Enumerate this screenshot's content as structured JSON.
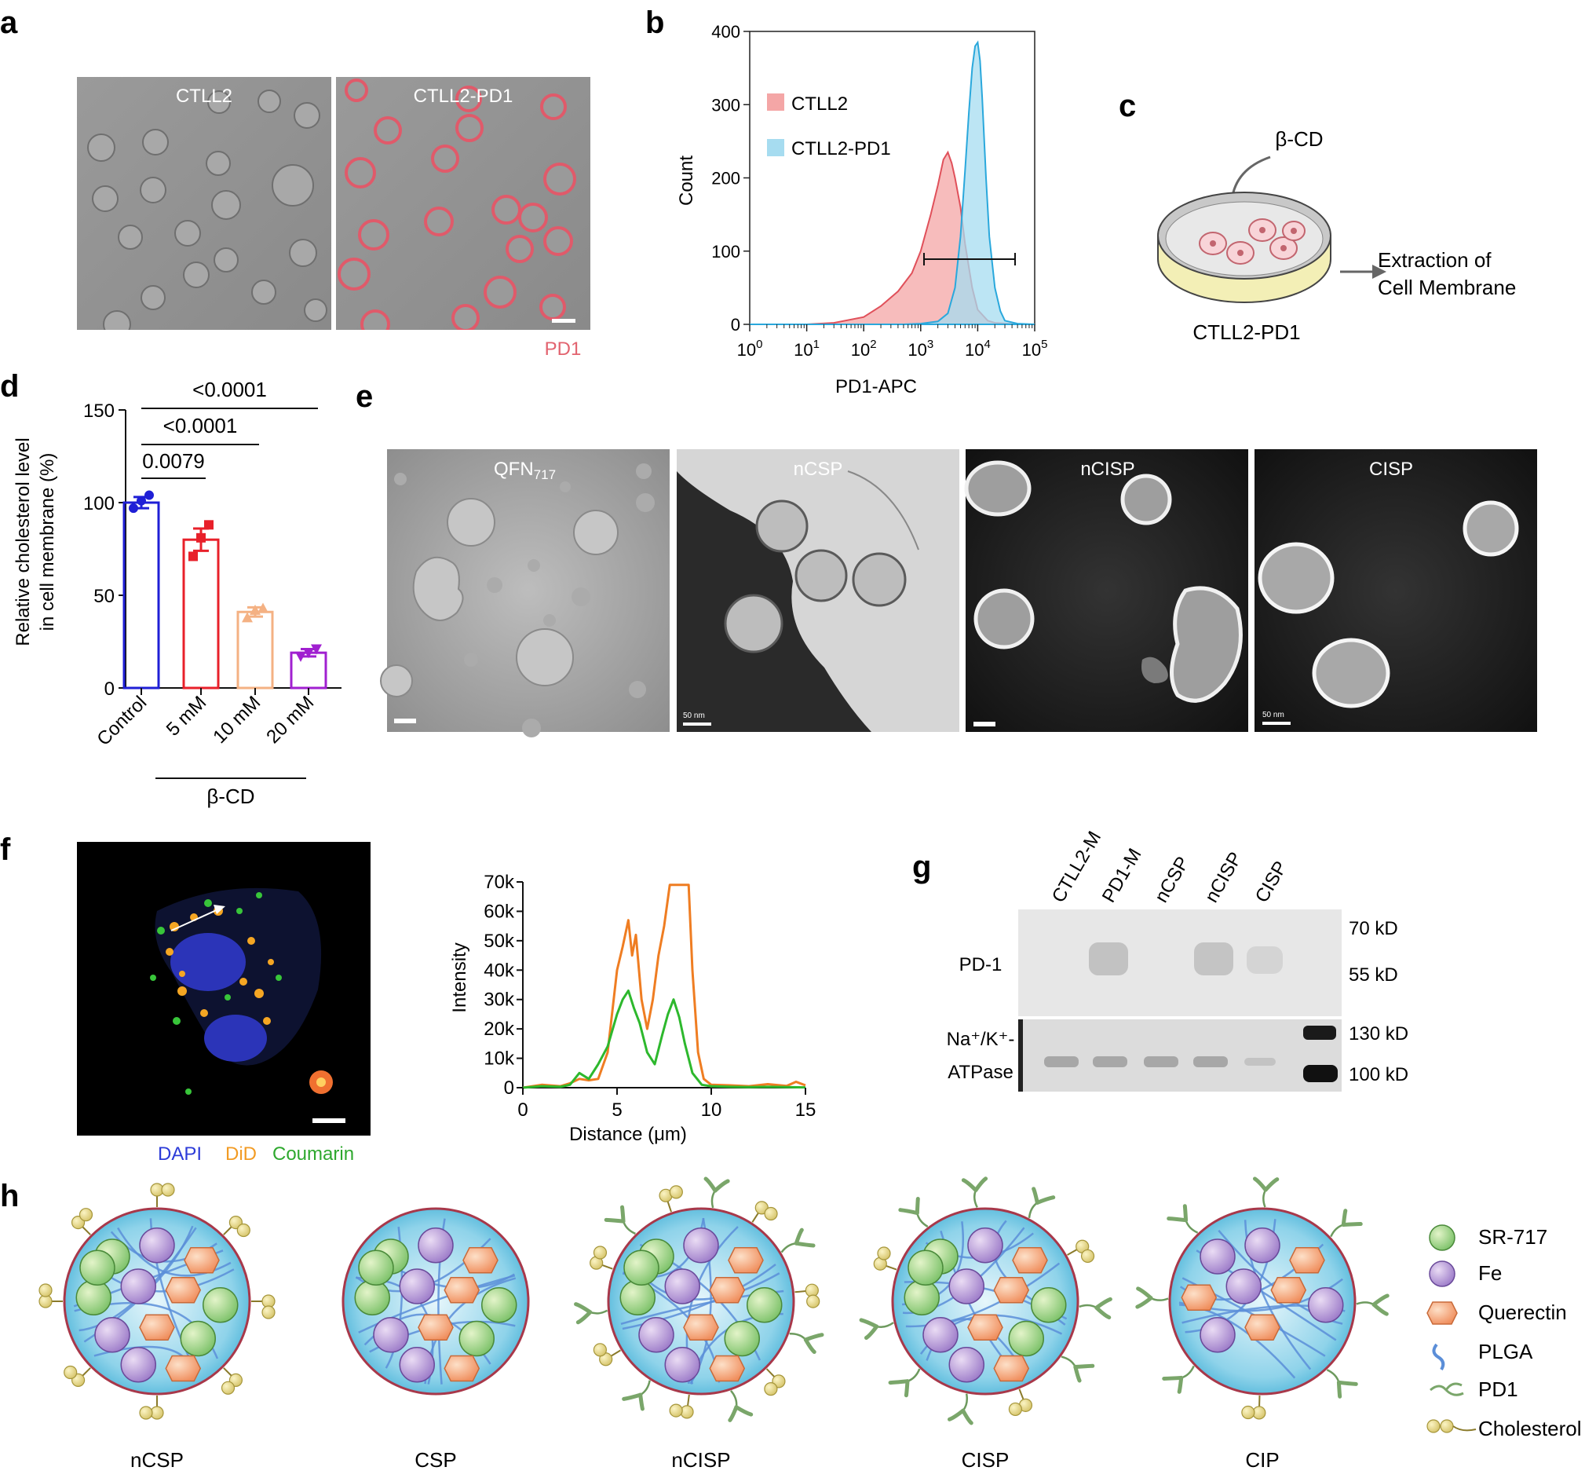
{
  "panels": {
    "a": {
      "letter": "a",
      "image_labels": [
        "CTLL2",
        "CTLL2-PD1"
      ],
      "channel_label": "PD1"
    },
    "b": {
      "letter": "b",
      "legend": [
        "CTLL2",
        "CTLL2-PD1"
      ],
      "xlabel": "PD1-APC",
      "ylabel": "Count",
      "yticks": [
        "0",
        "100",
        "200",
        "300",
        "400"
      ],
      "xticks": [
        {
          "base": "10",
          "exp": "0"
        },
        {
          "base": "10",
          "exp": "1"
        },
        {
          "base": "10",
          "exp": "2"
        },
        {
          "base": "10",
          "exp": "3"
        },
        {
          "base": "10",
          "exp": "4"
        },
        {
          "base": "10",
          "exp": "5"
        }
      ]
    },
    "c": {
      "letter": "c",
      "reagent": "β-CD",
      "output_line1": "Extraction of",
      "output_line2": "Cell Membrane",
      "dish_label": "CTLL2-PD1"
    },
    "d": {
      "letter": "d",
      "ylabel_line1": "Relative cholesterol level",
      "ylabel_line2": "in cell membrane (%)",
      "yticks": [
        "0",
        "50",
        "100",
        "150"
      ],
      "group_label": "β-CD",
      "pvalues": [
        "<0.0001",
        "<0.0001",
        "0.0079"
      ]
    },
    "e": {
      "letter": "e",
      "image_labels": [
        "QFN",
        "nCSP",
        "nCISP",
        "CISP"
      ],
      "qfn_subscript": "717",
      "scale_text": [
        "50 nm",
        "50 nm"
      ]
    },
    "f": {
      "letter": "f",
      "stain_labels": [
        "DAPI",
        "DiD",
        "Coumarin"
      ],
      "xlabel": "Distance (μm)",
      "ylabel": "Intensity",
      "yticks": [
        "0",
        "10k",
        "20k",
        "30k",
        "40k",
        "50k",
        "60k",
        "70k"
      ],
      "xticks": [
        "0",
        "5",
        "10",
        "15"
      ]
    },
    "g": {
      "letter": "g",
      "lanes": [
        "CTLL2-M",
        "PD1-M",
        "nCSP",
        "nCISP",
        "CISP"
      ],
      "row1_label": "PD-1",
      "row2_label_line1": "Na⁺/K⁺-",
      "row2_label_line2": "ATPase",
      "markers": [
        "70 kD",
        "55 kD",
        "130 kD",
        "100 kD"
      ]
    },
    "h": {
      "letter": "h",
      "particles": [
        "nCSP",
        "CSP",
        "nCISP",
        "CISP",
        "CIP"
      ],
      "legend": [
        "SR-717",
        "Fe",
        "Querectin",
        "PLGA",
        "PD1",
        "Cholesterol"
      ]
    }
  },
  "chart_data": [
    {
      "type": "bar",
      "panel": "d",
      "categories": [
        "Control",
        "5 mM",
        "10 mM",
        "20 mM"
      ],
      "values": [
        100,
        80,
        41,
        19
      ],
      "errors": [
        3,
        6,
        2.5,
        2
      ],
      "points": [
        [
          97,
          101,
          104
        ],
        [
          71,
          81,
          88
        ],
        [
          38,
          42,
          43
        ],
        [
          17,
          19,
          21
        ]
      ],
      "colors": [
        "#1f1fd6",
        "#e8202a",
        "#f4b183",
        "#a020d0"
      ],
      "ylabel": "Relative cholesterol level in cell membrane (%)",
      "ylim": [
        0,
        150
      ],
      "comparisons": [
        {
          "pair": [
            "Control",
            "20 mM"
          ],
          "p": "<0.0001"
        },
        {
          "pair": [
            "Control",
            "10 mM"
          ],
          "p": "<0.0001"
        },
        {
          "pair": [
            "Control",
            "5 mM"
          ],
          "p": "0.0079"
        }
      ]
    },
    {
      "type": "area",
      "panel": "b",
      "xlabel": "PD1-APC",
      "ylabel": "Count",
      "xscale": "log",
      "xlim": [
        1,
        100000
      ],
      "ylim": [
        0,
        400
      ],
      "series": [
        {
          "name": "CTLL2",
          "color": "#f4a6a6",
          "x": [
            1,
            10,
            30,
            100,
            200,
            400,
            700,
            1000,
            1500,
            2000,
            2500,
            3000,
            3500,
            4000,
            5000,
            6000,
            8000,
            10000,
            15000,
            20000,
            50000,
            100000
          ],
          "y": [
            0,
            0,
            2,
            10,
            25,
            45,
            70,
            100,
            150,
            190,
            225,
            235,
            220,
            200,
            160,
            110,
            50,
            20,
            5,
            2,
            0,
            0
          ]
        },
        {
          "name": "CTLL2-PD1",
          "color": "#a6dcf0",
          "x": [
            1,
            100,
            500,
            1000,
            2000,
            3000,
            4000,
            5000,
            6000,
            7000,
            8000,
            9000,
            10000,
            11000,
            12000,
            14000,
            16000,
            20000,
            25000,
            30000,
            50000,
            100000
          ],
          "y": [
            0,
            0,
            0,
            1,
            4,
            15,
            50,
            120,
            210,
            290,
            350,
            380,
            385,
            360,
            310,
            200,
            120,
            50,
            18,
            5,
            1,
            0
          ]
        }
      ]
    },
    {
      "type": "line",
      "panel": "f",
      "xlabel": "Distance (μm)",
      "ylabel": "Intensity",
      "xlim": [
        0,
        15
      ],
      "ylim": [
        0,
        70000
      ],
      "series": [
        {
          "name": "DiD",
          "color": "#ef7d22",
          "x": [
            0,
            1,
            2,
            2.5,
            3,
            3.5,
            4,
            4.5,
            5,
            5.3,
            5.6,
            5.8,
            6,
            6.3,
            6.6,
            6.9,
            7.2,
            7.5,
            7.8,
            8,
            8.5,
            8.8,
            9,
            9.3,
            9.6,
            10,
            11,
            12,
            13,
            14,
            14.5,
            15
          ],
          "y": [
            0,
            1000,
            500,
            1500,
            3000,
            2500,
            3000,
            12000,
            40000,
            48000,
            57000,
            45000,
            52000,
            30000,
            20000,
            30000,
            45000,
            55000,
            69000,
            69000,
            69000,
            69000,
            40000,
            12000,
            3000,
            1000,
            800,
            500,
            1200,
            600,
            2000,
            800
          ]
        },
        {
          "name": "Coumarin",
          "color": "#2db82d",
          "x": [
            0,
            1,
            2,
            2.5,
            3,
            3.5,
            4,
            4.5,
            5,
            5.3,
            5.6,
            5.9,
            6.2,
            6.6,
            7,
            7.4,
            7.7,
            8,
            8.3,
            8.6,
            9,
            9.5,
            10,
            11,
            12,
            13,
            14,
            15
          ],
          "y": [
            0,
            500,
            300,
            1000,
            5000,
            3000,
            8000,
            14000,
            25000,
            30000,
            33000,
            27000,
            22000,
            12000,
            8000,
            18000,
            25000,
            30000,
            24000,
            15000,
            5000,
            1000,
            500,
            300,
            200,
            300,
            200,
            100
          ]
        }
      ]
    }
  ]
}
